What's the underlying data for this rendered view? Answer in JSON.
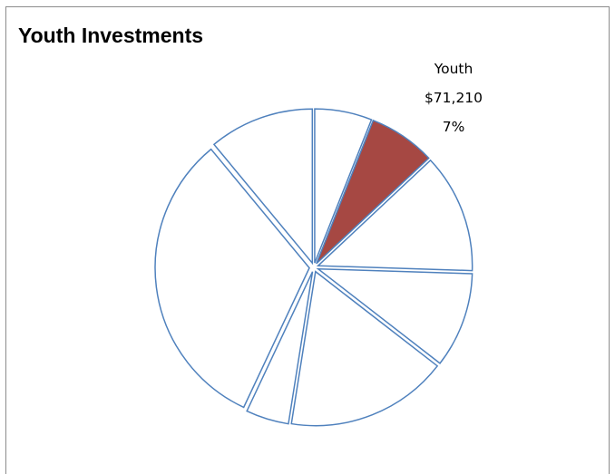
{
  "chart_data": {
    "type": "pie",
    "title": "Youth Investments",
    "exploded": true,
    "colors": {
      "highlight_fill": "#A64843",
      "outline": "#4F81BD",
      "default_fill": "#FFFFFF"
    },
    "slices": [
      {
        "value": 6,
        "highlight": false
      },
      {
        "value": 7,
        "highlight": true,
        "label": {
          "name": "Youth",
          "amount": "$71,210",
          "percent": "7%"
        }
      },
      {
        "value": 12.5,
        "highlight": false
      },
      {
        "value": 10,
        "highlight": false
      },
      {
        "value": 17,
        "highlight": false
      },
      {
        "value": 4.5,
        "highlight": false
      },
      {
        "value": 32,
        "highlight": false
      },
      {
        "value": 11,
        "highlight": false
      }
    ]
  }
}
